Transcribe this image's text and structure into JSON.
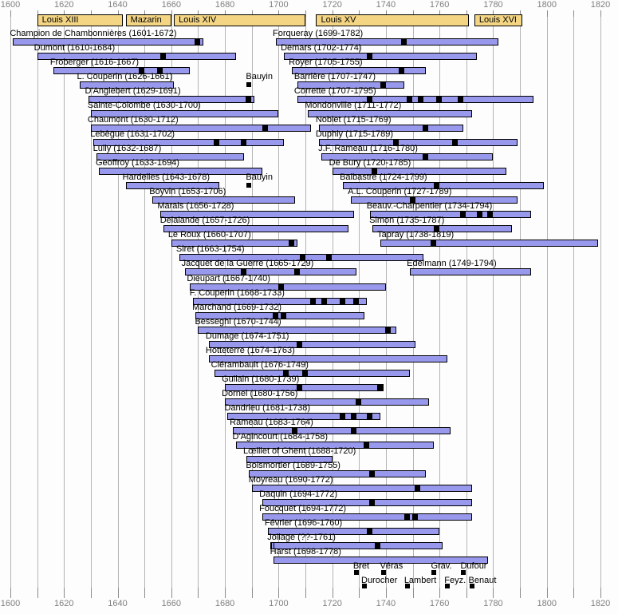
{
  "axis": {
    "start": 1600,
    "end": 1820,
    "label_step": 20,
    "grid_step": 10,
    "tick_labels": [
      "1600",
      "1620",
      "1640",
      "1660",
      "1680",
      "1700",
      "1720",
      "1740",
      "1760",
      "1780",
      "1800",
      "1820"
    ]
  },
  "reigns": [
    {
      "name": "Louis XIII",
      "start": 1610,
      "end": 1642
    },
    {
      "name": "Mazarin",
      "start": 1643,
      "end": 1660
    },
    {
      "name": "Louis XIV",
      "start": 1661,
      "end": 1710
    },
    {
      "name": "Louis XV",
      "start": 1714,
      "end": 1771
    },
    {
      "name": "Louis XVI",
      "start": 1773,
      "end": 1791
    }
  ],
  "chart_data": {
    "type": "timeline",
    "xlabel": "year",
    "xlim": [
      1600,
      1820
    ],
    "grid": "vertical every 10 years",
    "entries": [
      {
        "label": "Champion de Chambonnières (1601-1672)",
        "name": "Champion de Chambonnières",
        "birth": 1601,
        "death": 1672,
        "row": 0,
        "markers": [
          1670
        ]
      },
      {
        "label": "Forqueray (1699-1782)",
        "name": "Forqueray",
        "birth": 1699,
        "death": 1782,
        "row": 0,
        "markers": [
          1747
        ]
      },
      {
        "label": "Dumont (1610-1684)",
        "name": "Dumont",
        "birth": 1610,
        "death": 1684,
        "row": 1,
        "markers": [
          1657
        ]
      },
      {
        "label": "Demars (1702-1774)",
        "name": "Demars",
        "birth": 1702,
        "death": 1774,
        "row": 1,
        "markers": [
          1734
        ]
      },
      {
        "label": "Froberger (1616-1667)",
        "name": "Froberger",
        "birth": 1616,
        "death": 1667,
        "row": 2,
        "markers": [
          1649,
          1656
        ]
      },
      {
        "label": "Royer (1705-1755)",
        "name": "Royer",
        "birth": 1705,
        "death": 1755,
        "row": 2,
        "markers": [
          1746
        ]
      },
      {
        "label": "L. Couperin (1626-1661)",
        "name": "L. Couperin",
        "birth": 1626,
        "death": 1661,
        "row": 3,
        "markers": []
      },
      {
        "label": "Barrière (1707-1747)",
        "name": "Barrière",
        "birth": 1707,
        "death": 1747,
        "row": 3,
        "markers": [
          1739
        ]
      },
      {
        "label": "D'Anglebert (1629-1691)",
        "name": "D'Anglebert",
        "birth": 1629,
        "death": 1691,
        "row": 4,
        "markers": [
          1689
        ]
      },
      {
        "label": "Corrette (1707-1795)",
        "name": "Corrette",
        "birth": 1707,
        "death": 1795,
        "row": 4,
        "markers": [
          1734,
          1749,
          1753,
          1760,
          1768
        ]
      },
      {
        "label": "Sainte-Colombe (1630-1700)",
        "name": "Sainte-Colombe",
        "birth": 1630,
        "death": 1700,
        "row": 5,
        "markers": []
      },
      {
        "label": "Mondonville (1711-1772)",
        "name": "Mondonville",
        "birth": 1711,
        "death": 1772,
        "row": 5,
        "markers": []
      },
      {
        "label": "Chaumont (1630-1712)",
        "name": "Chaumont",
        "birth": 1630,
        "death": 1712,
        "row": 6,
        "markers": [
          1695
        ]
      },
      {
        "label": "Noblet (1715-1769)",
        "name": "Noblet",
        "birth": 1715,
        "death": 1769,
        "row": 6,
        "markers": [
          1755
        ]
      },
      {
        "label": "Lebègue (1631-1702)",
        "name": "Lebègue",
        "birth": 1631,
        "death": 1702,
        "row": 7,
        "markers": [
          1677,
          1687
        ]
      },
      {
        "label": "Duphly (1715-1789)",
        "name": "Duphly",
        "birth": 1715,
        "death": 1789,
        "row": 7,
        "markers": [
          1744,
          1766
        ]
      },
      {
        "label": "Lully (1632-1687)",
        "name": "Lully",
        "birth": 1632,
        "death": 1687,
        "row": 8,
        "markers": []
      },
      {
        "label": "J.F. Rameau (1716-1780)",
        "name": "J.F. Rameau",
        "birth": 1716,
        "death": 1780,
        "row": 8,
        "markers": [
          1755
        ]
      },
      {
        "label": "Geoffroy (1633-1694)",
        "name": "Geoffroy",
        "birth": 1633,
        "death": 1694,
        "row": 9,
        "markers": []
      },
      {
        "label": "De Bury (1720-1785)",
        "name": "De Bury",
        "birth": 1720,
        "death": 1785,
        "row": 9,
        "markers": [
          1736
        ]
      },
      {
        "label": "Hardelles (1643-1678)",
        "name": "Hardelles",
        "birth": 1643,
        "death": 1678,
        "row": 10,
        "markers": []
      },
      {
        "label": "Balbastre (1724-1799)",
        "name": "Balbastre",
        "birth": 1724,
        "death": 1799,
        "row": 10,
        "markers": [
          1759
        ]
      },
      {
        "label": "Boyvin (1653-1706)",
        "name": "Boyvin",
        "birth": 1653,
        "death": 1706,
        "row": 11,
        "markers": []
      },
      {
        "label": "A.L. Couperin (1727-1789)",
        "name": "A.L. Couperin",
        "birth": 1727,
        "death": 1789,
        "row": 11,
        "markers": [
          1750
        ]
      },
      {
        "label": "Marais (1656-1728)",
        "name": "Marais",
        "birth": 1656,
        "death": 1728,
        "row": 12,
        "markers": []
      },
      {
        "label": "Beauv.-Charpentier (1734-1794)",
        "name": "Beauv.-Charpentier",
        "birth": 1734,
        "death": 1794,
        "row": 12,
        "markers": [
          1769,
          1775,
          1779
        ]
      },
      {
        "label": "Delalande (1657-1726)",
        "name": "Delalande",
        "birth": 1657,
        "death": 1726,
        "row": 13,
        "markers": []
      },
      {
        "label": "Simon (1735-1787)",
        "name": "Simon",
        "birth": 1735,
        "death": 1787,
        "row": 13,
        "markers": [
          1759
        ]
      },
      {
        "label": "Le Roux (1660-1707)",
        "name": "Le Roux",
        "birth": 1660,
        "death": 1707,
        "row": 14,
        "markers": [
          1705
        ]
      },
      {
        "label": "Tapray (1738-1819)",
        "name": "Tapray",
        "birth": 1738,
        "death": 1819,
        "row": 14,
        "markers": [
          1758
        ]
      },
      {
        "label": "Siret (1663-1754)",
        "name": "Siret",
        "birth": 1663,
        "death": 1754,
        "row": 15,
        "markers": [
          1709,
          1719
        ]
      },
      {
        "label": "Jacquet de la Guerre (1665-1729)",
        "name": "Jacquet de la Guerre",
        "birth": 1665,
        "death": 1729,
        "row": 16,
        "markers": [
          1687,
          1707
        ]
      },
      {
        "label": "Edelmann (1749-1794)",
        "name": "Edelmann",
        "birth": 1749,
        "death": 1794,
        "row": 16,
        "markers": []
      },
      {
        "label": "Dieupart (1667-1740)",
        "name": "Dieupart",
        "birth": 1667,
        "death": 1740,
        "row": 17,
        "markers": [
          1701
        ]
      },
      {
        "label": "F. Couperin (1668-1733)",
        "name": "F. Couperin",
        "birth": 1668,
        "death": 1733,
        "row": 18,
        "markers": [
          1713,
          1717,
          1724,
          1729
        ]
      },
      {
        "label": "Marchand (1669-1732)",
        "name": "Marchand",
        "birth": 1669,
        "death": 1732,
        "row": 19,
        "markers": [
          1699,
          1702
        ]
      },
      {
        "label": "Besseghi (1670-1744)",
        "name": "Besseghi",
        "birth": 1670,
        "death": 1744,
        "row": 20,
        "markers": [
          1741
        ]
      },
      {
        "label": "Dumage (1674-1751)",
        "name": "Dumage",
        "birth": 1674,
        "death": 1751,
        "row": 21,
        "markers": [
          1708
        ]
      },
      {
        "label": "Hotteterre (1674-1763)",
        "name": "Hotteterre",
        "birth": 1674,
        "death": 1763,
        "row": 22,
        "markers": []
      },
      {
        "label": "Clérambault (1676-1749)",
        "name": "Clérambault",
        "birth": 1676,
        "death": 1749,
        "row": 23,
        "markers": [
          1703,
          1710
        ]
      },
      {
        "label": "Guilain (1680-1739)",
        "name": "Guilain",
        "birth": 1680,
        "death": 1739,
        "row": 24,
        "markers": [
          1708,
          1738
        ]
      },
      {
        "label": "Dornel (1680-1756)",
        "name": "Dornel",
        "birth": 1680,
        "death": 1756,
        "row": 25,
        "markers": [
          1730
        ]
      },
      {
        "label": "Dandrieu (1681-1738)",
        "name": "Dandrieu",
        "birth": 1681,
        "death": 1738,
        "row": 26,
        "markers": [
          1724,
          1728,
          1734
        ]
      },
      {
        "label": "Rameau (1683-1764)",
        "name": "Rameau",
        "birth": 1683,
        "death": 1764,
        "row": 27,
        "markers": [
          1706,
          1728
        ]
      },
      {
        "label": "D'Agincourt (1684-1758)",
        "name": "D'Agincourt",
        "birth": 1684,
        "death": 1758,
        "row": 28,
        "markers": [
          1733
        ]
      },
      {
        "label": "Lœillet of Ghent (1688-1720)",
        "name": "Lœillet of Ghent",
        "birth": 1688,
        "death": 1720,
        "row": 29,
        "markers": []
      },
      {
        "label": "Boismortier (1689-1755)",
        "name": "Boismortier",
        "birth": 1689,
        "death": 1755,
        "row": 30,
        "markers": [
          1735
        ]
      },
      {
        "label": "Moyreau (1690-1772)",
        "name": "Moyreau",
        "birth": 1690,
        "death": 1772,
        "row": 31,
        "markers": [
          1752
        ]
      },
      {
        "label": "Daquin (1694-1772)",
        "name": "Daquin",
        "birth": 1694,
        "death": 1772,
        "row": 32,
        "markers": [
          1735
        ]
      },
      {
        "label": "Foucquet (1694-1772)",
        "name": "Foucquet",
        "birth": 1694,
        "death": 1772,
        "row": 33,
        "markers": [
          1748,
          1751
        ]
      },
      {
        "label": "Février (1696-1760)",
        "name": "Février",
        "birth": 1696,
        "death": 1760,
        "row": 34,
        "markers": [
          1734
        ]
      },
      {
        "label": "Jollage (??-1761)",
        "name": "Jollage",
        "birth": null,
        "birth_display": "??",
        "bar_start": 1697,
        "uncertain_start": true,
        "death": 1761,
        "row": 35,
        "markers": [
          1737
        ]
      },
      {
        "label": "Harst (1698-1778)",
        "name": "Harst",
        "birth": 1698,
        "death": 1778,
        "row": 36,
        "markers": []
      }
    ],
    "annotations": [
      {
        "label": "Bauyin",
        "year": 1689,
        "row": 3
      },
      {
        "label": "Bauyin",
        "year": 1689,
        "row": 10
      }
    ],
    "publication_only": [
      {
        "label": "Bret",
        "year": 1729,
        "line": 1
      },
      {
        "label": "Véras",
        "year": 1739,
        "line": 1
      },
      {
        "label": "Grav.",
        "year": 1758,
        "line": 1
      },
      {
        "label": "Dufour",
        "year": 1769,
        "line": 1
      },
      {
        "label": "Durocher",
        "year": 1732,
        "line": 2
      },
      {
        "label": "Lambert",
        "year": 1748,
        "line": 2
      },
      {
        "label": "Feyz.",
        "year": 1763,
        "line": 2
      },
      {
        "label": "Benaut",
        "year": 1772,
        "line": 2
      }
    ]
  },
  "colors": {
    "lifespan_bar": "#9898EC",
    "reign_bar": "#F3D584",
    "marker": "#000000",
    "grid_line": "#B4B4B4",
    "axis_tick": "#8C8C8C",
    "axis_text": "#7F7F7F",
    "label_text": "#000000",
    "background": "#FDFDFD"
  }
}
